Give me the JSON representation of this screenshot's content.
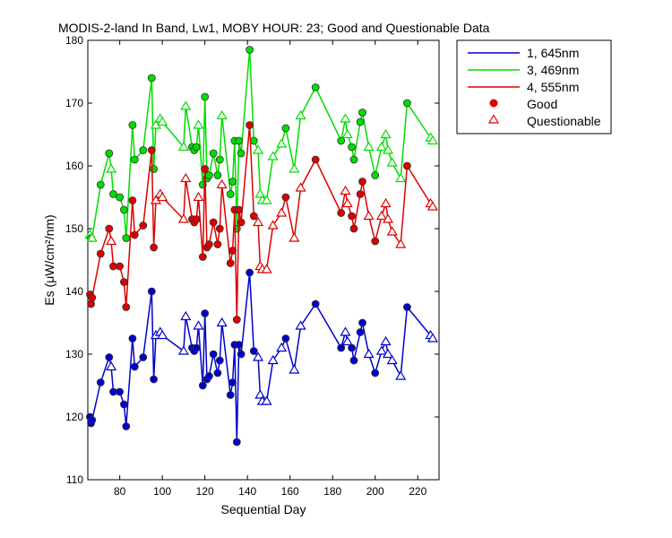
{
  "chart_data": {
    "type": "line",
    "title": "MODIS-2-land In Band,  Lw1, MOBY HOUR: 23;  Good and Questionable Data",
    "xlabel": "Sequential Day",
    "ylabel": "Es (μW/cm²/nm)",
    "xlim": [
      65,
      230
    ],
    "ylim": [
      110,
      180
    ],
    "xticks": [
      80,
      100,
      120,
      140,
      160,
      180,
      200,
      220
    ],
    "yticks": [
      110,
      120,
      130,
      140,
      150,
      160,
      170,
      180
    ],
    "grid": false,
    "legend_position": "top-right, outside plot",
    "legend": {
      "marker_good": "Good",
      "marker_questionable": "Questionable"
    },
    "series": [
      {
        "name": "1, 645nm",
        "color": "#0000cc",
        "points": [
          [
            66,
            120,
            "g"
          ],
          [
            66.5,
            119,
            "g"
          ],
          [
            67,
            119.5,
            "g"
          ],
          [
            71,
            125.5,
            "g"
          ],
          [
            75,
            129.5,
            "g"
          ],
          [
            76,
            128,
            "q"
          ],
          [
            77,
            124,
            "g"
          ],
          [
            80,
            124,
            "g"
          ],
          [
            82,
            122,
            "g"
          ],
          [
            83,
            118.5,
            "g"
          ],
          [
            86,
            132.5,
            "g"
          ],
          [
            87,
            128,
            "g"
          ],
          [
            91,
            129.5,
            "g"
          ],
          [
            95,
            140,
            "g"
          ],
          [
            96,
            126,
            "g"
          ],
          [
            97,
            133,
            "q"
          ],
          [
            99,
            133.5,
            "q"
          ],
          [
            100,
            133,
            "q"
          ],
          [
            110,
            130.5,
            "q"
          ],
          [
            111,
            136,
            "q"
          ],
          [
            114,
            131,
            "g"
          ],
          [
            115,
            130.5,
            "g"
          ],
          [
            116,
            131,
            "g"
          ],
          [
            117,
            134.5,
            "q"
          ],
          [
            119,
            125,
            "g"
          ],
          [
            120,
            136.5,
            "g"
          ],
          [
            121,
            126,
            "g"
          ],
          [
            122,
            126.5,
            "g"
          ],
          [
            124,
            130,
            "g"
          ],
          [
            126,
            127,
            "g"
          ],
          [
            127,
            129,
            "g"
          ],
          [
            128,
            135,
            "q"
          ],
          [
            132,
            123.5,
            "g"
          ],
          [
            133,
            125.5,
            "g"
          ],
          [
            134,
            131.5,
            "g"
          ],
          [
            135,
            116,
            "g"
          ],
          [
            136,
            131.5,
            "g"
          ],
          [
            137,
            130,
            "g"
          ],
          [
            141,
            143,
            "g"
          ],
          [
            143,
            130.5,
            "g"
          ],
          [
            145,
            129.5,
            "q"
          ],
          [
            146,
            123.5,
            "q"
          ],
          [
            147,
            122.5,
            "q"
          ],
          [
            149,
            122.5,
            "q"
          ],
          [
            152,
            129,
            "q"
          ],
          [
            156,
            131,
            "q"
          ],
          [
            158,
            132.5,
            "g"
          ],
          [
            162,
            127.5,
            "q"
          ],
          [
            165,
            134.5,
            "q"
          ],
          [
            172,
            138,
            "g"
          ],
          [
            184,
            131,
            "g"
          ],
          [
            186,
            133.5,
            "q"
          ],
          [
            187,
            132,
            "q"
          ],
          [
            189,
            131,
            "g"
          ],
          [
            190,
            129,
            "g"
          ],
          [
            193,
            133.5,
            "g"
          ],
          [
            194,
            135,
            "g"
          ],
          [
            197,
            130,
            "q"
          ],
          [
            200,
            127,
            "g"
          ],
          [
            203,
            130.5,
            "q"
          ],
          [
            205,
            132,
            "q"
          ],
          [
            206,
            130,
            "q"
          ],
          [
            208,
            129,
            "q"
          ],
          [
            212,
            126.5,
            "q"
          ],
          [
            215,
            137.5,
            "g"
          ],
          [
            226,
            133,
            "q"
          ],
          [
            227,
            132.5,
            "q"
          ]
        ]
      },
      {
        "name": "3, 469nm",
        "color": "#00dd00",
        "points": [
          [
            66,
            149,
            "q"
          ],
          [
            66.5,
            148.5,
            "g"
          ],
          [
            67,
            148.5,
            "q"
          ],
          [
            71,
            157,
            "g"
          ],
          [
            75,
            162,
            "g"
          ],
          [
            76,
            159.5,
            "q"
          ],
          [
            77,
            155.5,
            "g"
          ],
          [
            80,
            155,
            "g"
          ],
          [
            82,
            153,
            "g"
          ],
          [
            83,
            148.5,
            "g"
          ],
          [
            86,
            166.5,
            "g"
          ],
          [
            87,
            161,
            "g"
          ],
          [
            91,
            162.5,
            "g"
          ],
          [
            95,
            174,
            "g"
          ],
          [
            96,
            159.5,
            "g"
          ],
          [
            97,
            166.5,
            "q"
          ],
          [
            99,
            167.5,
            "q"
          ],
          [
            100,
            167,
            "q"
          ],
          [
            110,
            163,
            "q"
          ],
          [
            111,
            169.5,
            "q"
          ],
          [
            114,
            163,
            "g"
          ],
          [
            115,
            162.5,
            "g"
          ],
          [
            116,
            163,
            "g"
          ],
          [
            117,
            166.5,
            "q"
          ],
          [
            119,
            157,
            "g"
          ],
          [
            120,
            171,
            "g"
          ],
          [
            121,
            158,
            "g"
          ],
          [
            122,
            158.5,
            "g"
          ],
          [
            124,
            162,
            "g"
          ],
          [
            126,
            158.5,
            "g"
          ],
          [
            127,
            161,
            "g"
          ],
          [
            128,
            168,
            "q"
          ],
          [
            132,
            155.5,
            "g"
          ],
          [
            133,
            157.5,
            "g"
          ],
          [
            134,
            164,
            "g"
          ],
          [
            135,
            150,
            "g"
          ],
          [
            136,
            164,
            "g"
          ],
          [
            137,
            162,
            "g"
          ],
          [
            141,
            178.5,
            "g"
          ],
          [
            143,
            164,
            "g"
          ],
          [
            145,
            162.5,
            "q"
          ],
          [
            146,
            155.5,
            "q"
          ],
          [
            147,
            154.5,
            "q"
          ],
          [
            149,
            154.5,
            "q"
          ],
          [
            152,
            161.5,
            "q"
          ],
          [
            156,
            163.5,
            "q"
          ],
          [
            158,
            166,
            "g"
          ],
          [
            162,
            159.5,
            "q"
          ],
          [
            165,
            168,
            "q"
          ],
          [
            172,
            172.5,
            "g"
          ],
          [
            184,
            164,
            "g"
          ],
          [
            186,
            167.5,
            "q"
          ],
          [
            187,
            165,
            "q"
          ],
          [
            189,
            163,
            "g"
          ],
          [
            190,
            161,
            "g"
          ],
          [
            193,
            167,
            "g"
          ],
          [
            194,
            168.5,
            "g"
          ],
          [
            197,
            163,
            "q"
          ],
          [
            200,
            158.5,
            "g"
          ],
          [
            203,
            163,
            "q"
          ],
          [
            205,
            165,
            "q"
          ],
          [
            206,
            162.5,
            "q"
          ],
          [
            208,
            160.5,
            "q"
          ],
          [
            212,
            158,
            "q"
          ],
          [
            215,
            170,
            "g"
          ],
          [
            226,
            164.5,
            "q"
          ],
          [
            227,
            164,
            "q"
          ]
        ]
      },
      {
        "name": "4, 555nm",
        "color": "#dd0000",
        "points": [
          [
            66,
            139.5,
            "g"
          ],
          [
            66.5,
            138,
            "g"
          ],
          [
            67,
            139,
            "g"
          ],
          [
            71,
            146,
            "g"
          ],
          [
            75,
            150,
            "g"
          ],
          [
            76,
            148,
            "q"
          ],
          [
            77,
            144,
            "g"
          ],
          [
            80,
            144,
            "g"
          ],
          [
            82,
            141.5,
            "g"
          ],
          [
            83,
            137.5,
            "g"
          ],
          [
            86,
            154.5,
            "g"
          ],
          [
            87,
            149,
            "g"
          ],
          [
            91,
            150.5,
            "g"
          ],
          [
            95,
            162.5,
            "g"
          ],
          [
            96,
            147,
            "g"
          ],
          [
            97,
            154.5,
            "q"
          ],
          [
            99,
            155.5,
            "q"
          ],
          [
            100,
            155,
            "q"
          ],
          [
            110,
            151.5,
            "q"
          ],
          [
            111,
            158,
            "q"
          ],
          [
            114,
            151.5,
            "g"
          ],
          [
            115,
            151,
            "g"
          ],
          [
            116,
            151.5,
            "g"
          ],
          [
            117,
            155,
            "q"
          ],
          [
            119,
            145.5,
            "g"
          ],
          [
            120,
            159.5,
            "g"
          ],
          [
            121,
            147,
            "g"
          ],
          [
            122,
            147.5,
            "g"
          ],
          [
            124,
            151,
            "g"
          ],
          [
            126,
            147.5,
            "g"
          ],
          [
            127,
            150,
            "g"
          ],
          [
            128,
            157,
            "q"
          ],
          [
            132,
            144.5,
            "g"
          ],
          [
            133,
            146.5,
            "g"
          ],
          [
            134,
            153,
            "g"
          ],
          [
            135,
            135.5,
            "g"
          ],
          [
            136,
            153,
            "g"
          ],
          [
            137,
            151,
            "g"
          ],
          [
            141,
            166.5,
            "g"
          ],
          [
            143,
            152,
            "g"
          ],
          [
            145,
            151,
            "q"
          ],
          [
            146,
            144,
            "q"
          ],
          [
            147,
            143.5,
            "q"
          ],
          [
            149,
            143.5,
            "q"
          ],
          [
            152,
            150.5,
            "q"
          ],
          [
            156,
            152.5,
            "q"
          ],
          [
            158,
            155,
            "g"
          ],
          [
            162,
            148.5,
            "q"
          ],
          [
            165,
            156.5,
            "q"
          ],
          [
            172,
            161,
            "g"
          ],
          [
            184,
            152.5,
            "g"
          ],
          [
            186,
            156,
            "q"
          ],
          [
            187,
            154,
            "q"
          ],
          [
            189,
            152,
            "g"
          ],
          [
            190,
            150,
            "g"
          ],
          [
            193,
            155.5,
            "g"
          ],
          [
            194,
            157.5,
            "g"
          ],
          [
            197,
            152,
            "q"
          ],
          [
            200,
            148,
            "g"
          ],
          [
            203,
            152,
            "q"
          ],
          [
            205,
            154,
            "q"
          ],
          [
            206,
            151.5,
            "q"
          ],
          [
            208,
            149.5,
            "q"
          ],
          [
            212,
            147.5,
            "q"
          ],
          [
            215,
            160,
            "g"
          ],
          [
            226,
            154,
            "q"
          ],
          [
            227,
            153.5,
            "q"
          ]
        ]
      }
    ]
  }
}
